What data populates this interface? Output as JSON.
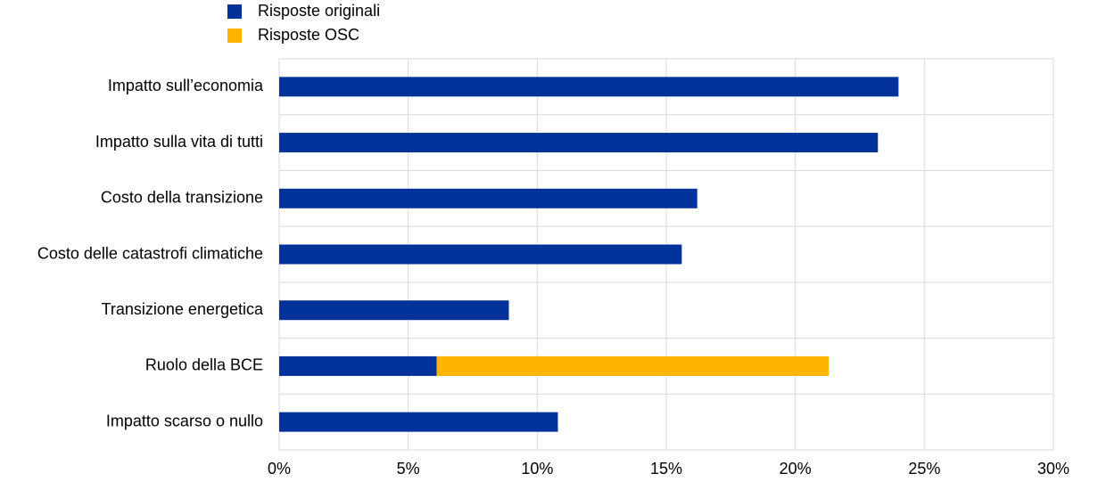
{
  "chart_data": {
    "type": "stacked-bar-horizontal",
    "categories": [
      "Impatto sull’economia",
      "Impatto sulla vita di tutti",
      "Costo della transizione",
      "Costo delle catastrofi climatiche",
      "Transizione energetica",
      "Ruolo della BCE",
      "Impatto scarso o nullo"
    ],
    "series": [
      {
        "name": "Risposte originali",
        "color": "#003299",
        "values": [
          24.0,
          23.2,
          16.2,
          15.6,
          8.9,
          6.1,
          10.8
        ]
      },
      {
        "name": "Risposte OSC",
        "color": "#ffb400",
        "values": [
          null,
          null,
          null,
          null,
          null,
          15.2,
          null
        ]
      }
    ],
    "xlim": [
      0,
      30
    ],
    "xticks": [
      {
        "value": 0,
        "label": "0%"
      },
      {
        "value": 5,
        "label": "5%"
      },
      {
        "value": 10,
        "label": "10%"
      },
      {
        "value": 15,
        "label": "15%"
      },
      {
        "value": 20,
        "label": "20%"
      },
      {
        "value": 25,
        "label": "25%"
      },
      {
        "value": 30,
        "label": "30%"
      }
    ],
    "grid": true,
    "legend": "top"
  }
}
